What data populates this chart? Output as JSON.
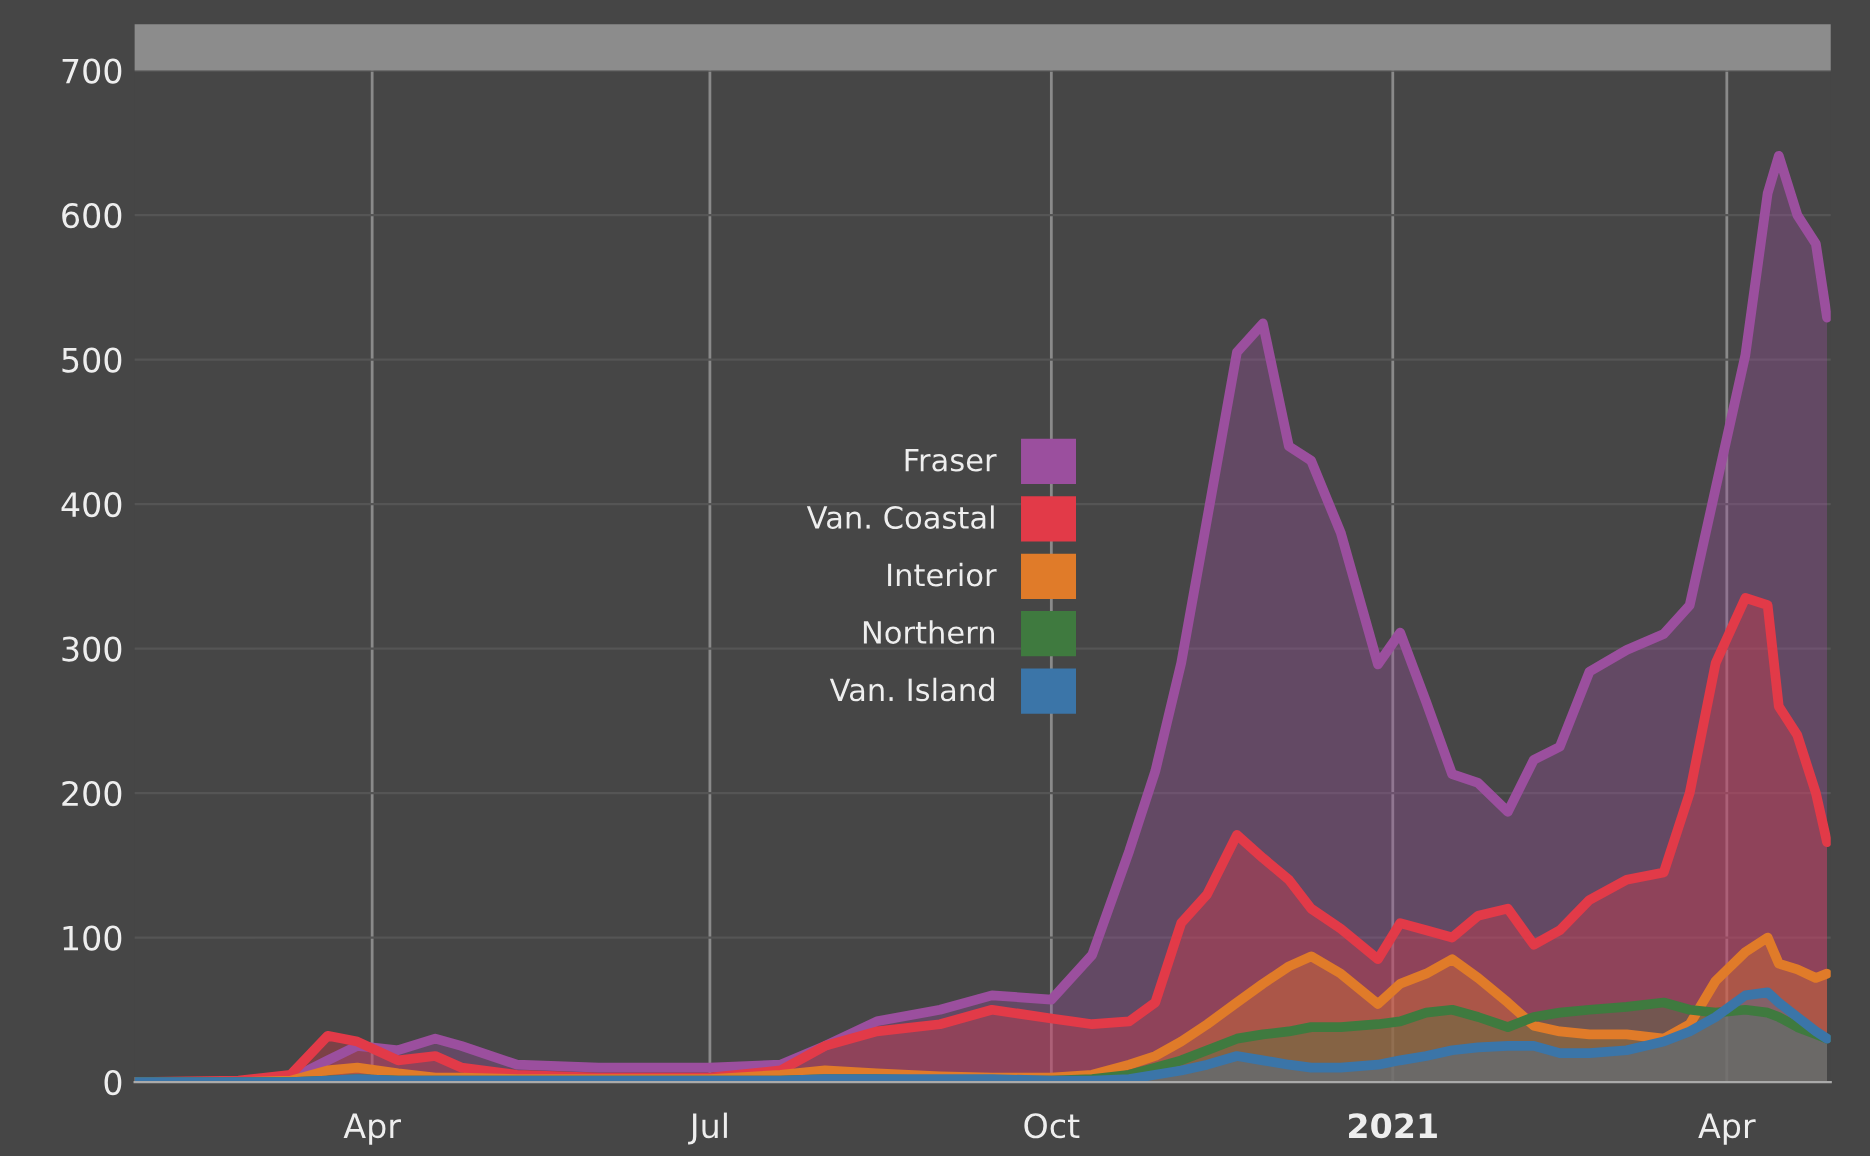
{
  "chart_data": {
    "type": "area",
    "x": [
      "2020-01-28",
      "2020-02-25",
      "2020-03-10",
      "2020-03-20",
      "2020-03-28",
      "2020-04-08",
      "2020-04-18",
      "2020-04-25",
      "2020-05-10",
      "2020-06-01",
      "2020-07-01",
      "2020-07-20",
      "2020-08-01",
      "2020-08-15",
      "2020-09-01",
      "2020-09-15",
      "2020-10-01",
      "2020-10-12",
      "2020-10-22",
      "2020-10-29",
      "2020-11-05",
      "2020-11-12",
      "2020-11-20",
      "2020-11-27",
      "2020-12-04",
      "2020-12-10",
      "2020-12-18",
      "2020-12-28",
      "2021-01-03",
      "2021-01-10",
      "2021-01-17",
      "2021-01-24",
      "2021-02-01",
      "2021-02-08",
      "2021-02-15",
      "2021-02-23",
      "2021-03-05",
      "2021-03-15",
      "2021-03-22",
      "2021-03-29",
      "2021-04-06",
      "2021-04-12",
      "2021-04-15",
      "2021-04-20",
      "2021-04-25",
      "2021-04-28"
    ],
    "series": [
      {
        "name": "Fraser",
        "color": "#9b4f9e",
        "values": [
          0,
          0,
          2,
          15,
          25,
          22,
          30,
          25,
          12,
          10,
          10,
          12,
          25,
          42,
          50,
          60,
          57,
          88,
          160,
          215,
          290,
          390,
          505,
          525,
          440,
          430,
          380,
          289,
          311,
          263,
          213,
          207,
          187,
          223,
          232,
          284,
          299,
          310,
          330,
          411,
          503,
          615,
          641,
          600,
          580,
          529
        ]
      },
      {
        "name": "Van. Coastal",
        "color": "#e23a48",
        "values": [
          0,
          1,
          5,
          32,
          28,
          15,
          18,
          10,
          5,
          3,
          3,
          8,
          25,
          35,
          40,
          50,
          44,
          40,
          42,
          55,
          110,
          130,
          171,
          155,
          140,
          120,
          106,
          85,
          110,
          105,
          100,
          115,
          120,
          95,
          105,
          126,
          140,
          145,
          200,
          290,
          335,
          330,
          260,
          240,
          200,
          166
        ]
      },
      {
        "name": "Interior",
        "color": "#e07b29",
        "values": [
          0,
          0,
          1,
          8,
          10,
          6,
          3,
          3,
          2,
          2,
          2,
          5,
          8,
          6,
          4,
          3,
          3,
          5,
          12,
          18,
          28,
          40,
          55,
          68,
          80,
          87,
          75,
          54,
          68,
          75,
          85,
          72,
          55,
          39,
          35,
          33,
          33,
          30,
          40,
          70,
          90,
          100,
          82,
          78,
          72,
          75
        ]
      },
      {
        "name": "Northern",
        "color": "#3f7a3f",
        "values": [
          0,
          0,
          0,
          1,
          2,
          1,
          1,
          1,
          1,
          1,
          1,
          1,
          2,
          2,
          1,
          1,
          1,
          2,
          5,
          10,
          15,
          22,
          30,
          33,
          35,
          38,
          38,
          40,
          42,
          48,
          50,
          45,
          38,
          45,
          48,
          50,
          52,
          55,
          50,
          48,
          50,
          48,
          45,
          38,
          33,
          30
        ]
      },
      {
        "name": "Van. Island",
        "color": "#3b75a8",
        "values": [
          0,
          0,
          0,
          1,
          2,
          1,
          1,
          1,
          1,
          1,
          1,
          1,
          2,
          2,
          2,
          2,
          1,
          1,
          2,
          5,
          8,
          12,
          18,
          15,
          12,
          10,
          10,
          12,
          15,
          18,
          22,
          24,
          25,
          25,
          20,
          20,
          22,
          28,
          35,
          45,
          60,
          62,
          55,
          45,
          35,
          30
        ]
      }
    ],
    "xlim": [
      "2020-01-28",
      "2021-04-29"
    ],
    "xticks": [
      {
        "value": "2020-04-01",
        "label": "Apr"
      },
      {
        "value": "2020-07-01",
        "label": "Jul"
      },
      {
        "value": "2020-10-01",
        "label": "Oct"
      },
      {
        "value": "2021-01-01",
        "label": "2021"
      },
      {
        "value": "2021-04-01",
        "label": "Apr"
      }
    ],
    "ylim": [
      0,
      700
    ],
    "yticks": [
      0,
      100,
      200,
      300,
      400,
      500,
      600,
      700
    ],
    "grid": true,
    "legend": "center left"
  }
}
